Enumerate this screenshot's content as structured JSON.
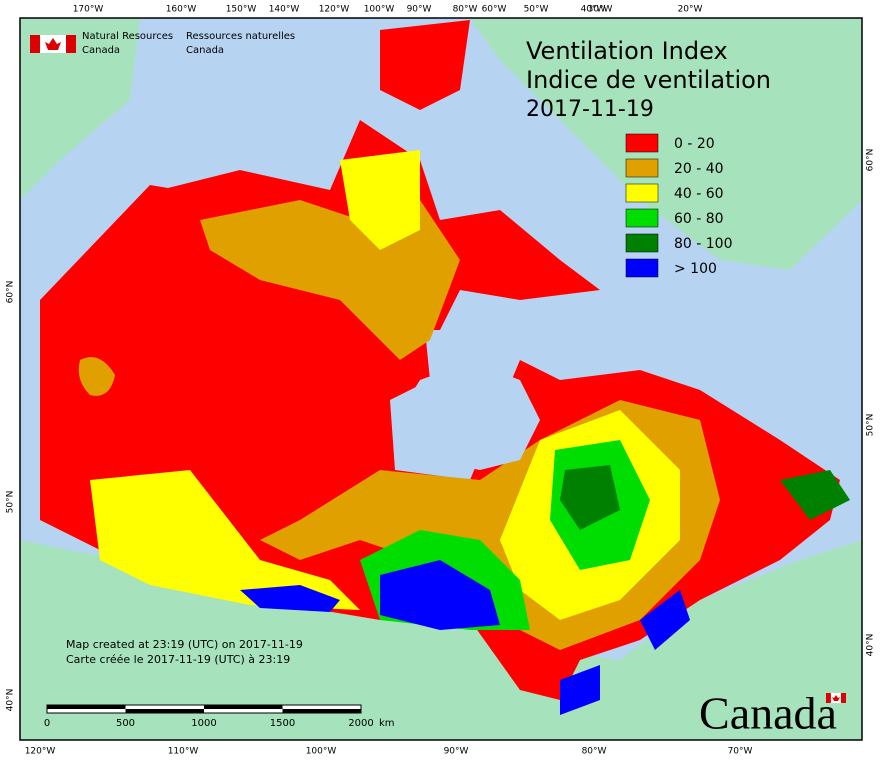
{
  "title": [
    "Ventilation Index",
    "Indice de ventilation",
    "2017-11-19"
  ],
  "organization": {
    "en": [
      "Natural Resources",
      "Canada"
    ],
    "fr": [
      "Ressources naturelles",
      "Canada"
    ]
  },
  "legend": [
    {
      "label": "0 - 20",
      "color": "#ff0000"
    },
    {
      "label": "20 - 40",
      "color": "#e0a000"
    },
    {
      "label": "40 - 60",
      "color": "#ffff00"
    },
    {
      "label": "60 - 80",
      "color": "#00dd00"
    },
    {
      "label": "80 - 100",
      "color": "#008000"
    },
    {
      "label": "> 100",
      "color": "#0000ff"
    }
  ],
  "graticule": {
    "top": [
      "170°W",
      "160°W",
      "150°W",
      "140°W",
      "120°W",
      "100°W",
      "90°W",
      "80°W",
      "60°W",
      "50°W",
      "40°W",
      "30°W",
      "20°W"
    ],
    "bottom": [
      "120°W",
      "110°W",
      "100°W",
      "90°W",
      "80°W",
      "70°W"
    ],
    "left": [
      "60°N",
      "50°N",
      "40°N"
    ],
    "right": [
      "60°N",
      "50°N",
      "40°N"
    ]
  },
  "scale_bar": {
    "labels": [
      "0",
      "500",
      "1000",
      "1500",
      "2000"
    ],
    "unit": "km"
  },
  "notes": [
    "Map created at 23:19 (UTC) on 2017-11-19",
    "Carte créée le 2017-11-19 (UTC) à 23:19"
  ],
  "wordmark": "Canada"
}
